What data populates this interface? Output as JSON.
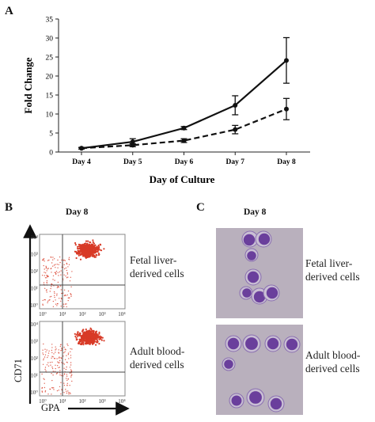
{
  "panels": {
    "a": {
      "letter": "A"
    },
    "b": {
      "letter": "B",
      "title": "Day 8",
      "top_label": "Fetal liver-derived cells",
      "bottom_label": "Adult blood-derived cells",
      "y_marker": "CD71",
      "x_marker": "GPA",
      "tick_labels": [
        "10°",
        "10¹",
        "10²",
        "10³",
        "10⁴"
      ]
    },
    "c": {
      "letter": "C",
      "title": "Day 8",
      "top_label": "Fetal liver-derived cells",
      "bottom_label": "Adult blood-derived cells"
    }
  },
  "colors": {
    "flow_dots": "#d83a26",
    "stain_cell": "#6a3f9c",
    "stain_bg": "#b9b0bd"
  },
  "chart_data": {
    "type": "line",
    "title": "",
    "xlabel": "Day of Culture",
    "ylabel": "Fold Change",
    "categories": [
      "Day 4",
      "Day 5",
      "Day 6",
      "Day 7",
      "Day 8"
    ],
    "ylim": [
      0,
      35
    ],
    "yticks": [
      0,
      5,
      10,
      15,
      20,
      25,
      30,
      35
    ],
    "grid": false,
    "series": [
      {
        "style": "solid",
        "values": [
          1,
          2.7,
          6.3,
          12.3,
          24.1
        ],
        "errors": [
          0.2,
          0.8,
          0.4,
          2.5,
          6.0
        ]
      },
      {
        "style": "dashed",
        "values": [
          1,
          1.8,
          3.0,
          5.9,
          11.3
        ],
        "errors": [
          0.2,
          0.4,
          0.5,
          1.1,
          2.8
        ]
      }
    ]
  }
}
